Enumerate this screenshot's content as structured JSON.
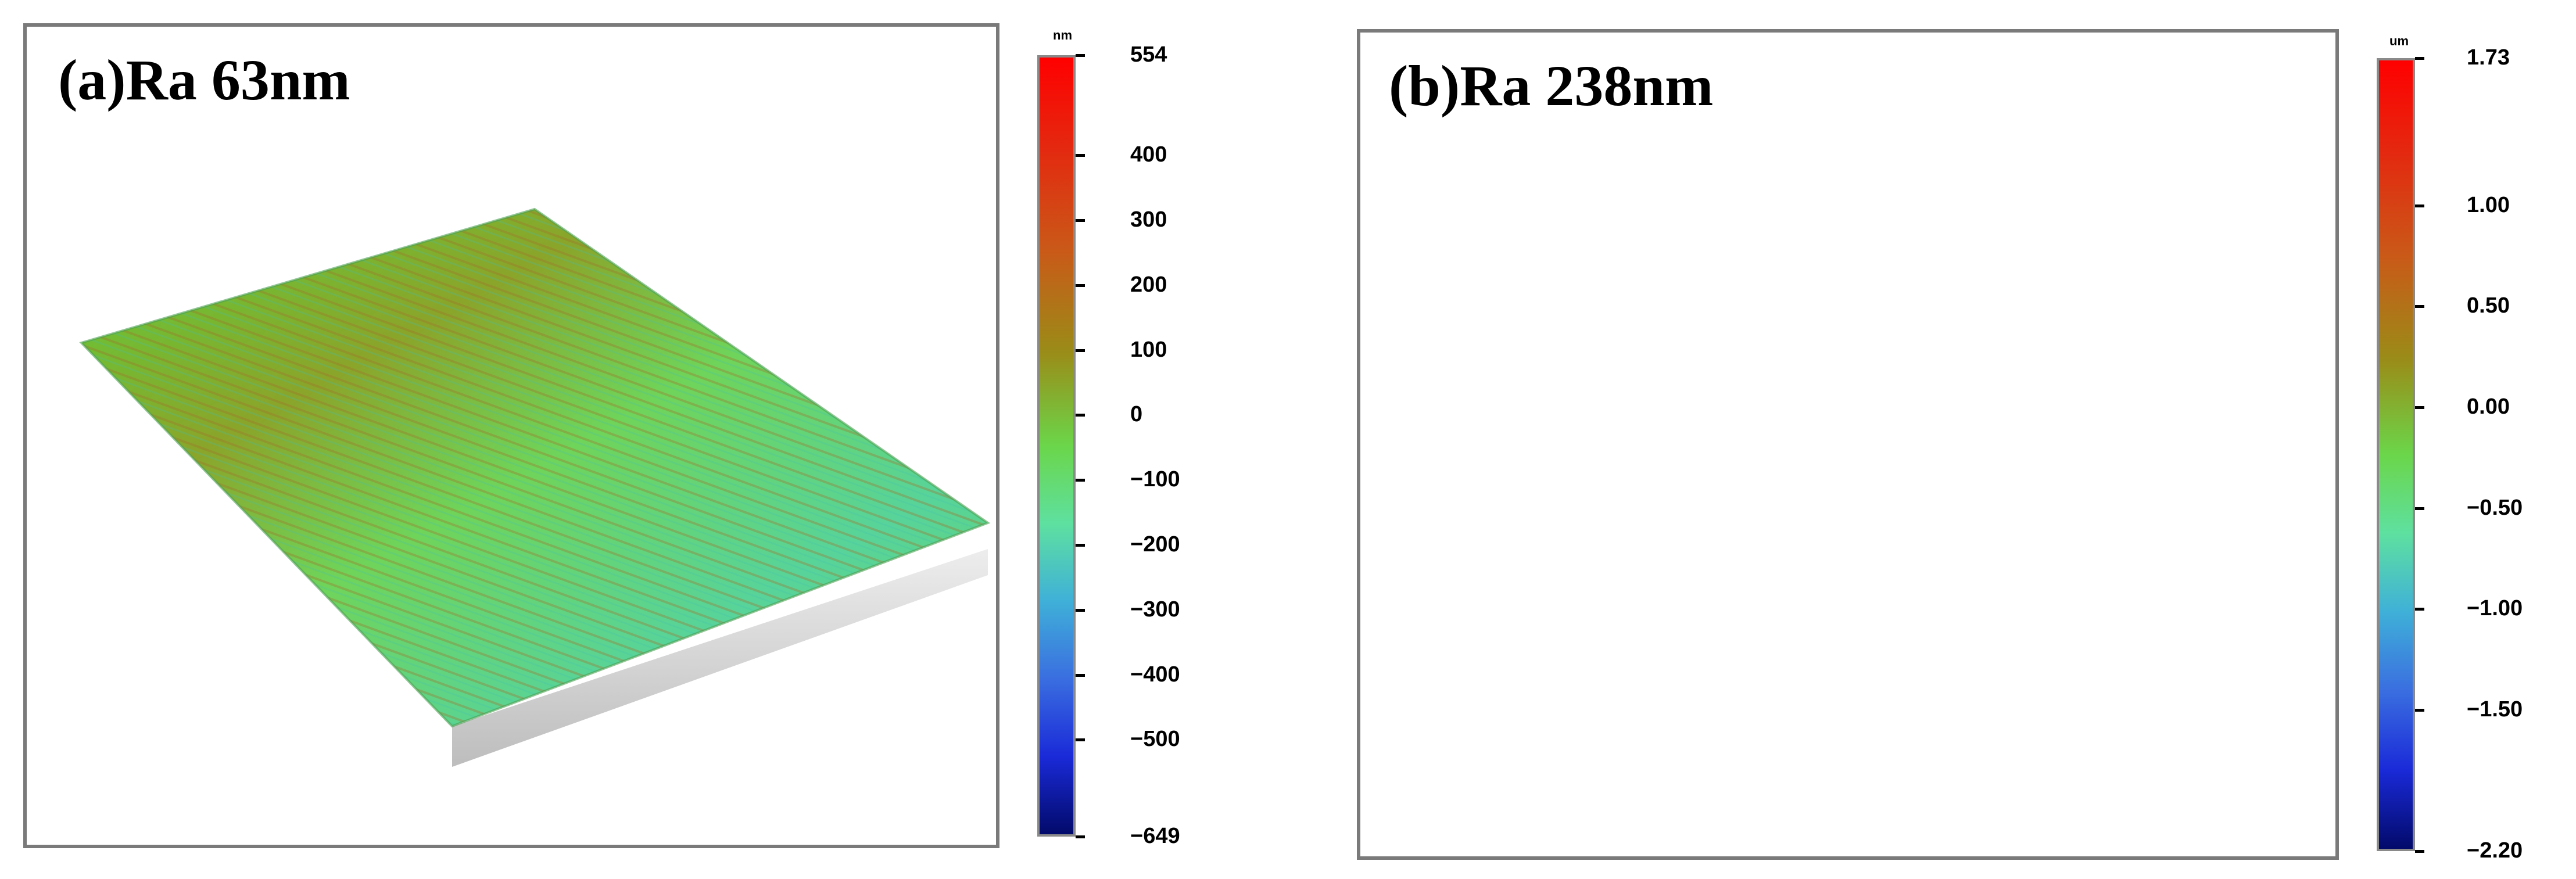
{
  "panel_a": {
    "title": "(a)Ra 63nm",
    "unit": "nm",
    "ticks": [
      "554",
      "400",
      "300",
      "200",
      "100",
      "0",
      "−100",
      "−200",
      "−300",
      "−400",
      "−500",
      "−649"
    ],
    "tick_values": [
      554,
      400,
      300,
      200,
      100,
      0,
      -100,
      -200,
      -300,
      -400,
      -500,
      -649
    ],
    "range": [
      -649,
      554
    ]
  },
  "panel_b": {
    "title": "(b)Ra 238nm",
    "unit": "um",
    "ticks": [
      "1.73",
      "1.00",
      "0.50",
      "0.00",
      "−0.50",
      "−1.00",
      "−1.50",
      "−2.20"
    ],
    "tick_values": [
      1.73,
      1.0,
      0.5,
      0.0,
      -0.5,
      -1.0,
      -1.5,
      -2.2
    ],
    "range": [
      -2.2,
      1.73
    ]
  }
}
